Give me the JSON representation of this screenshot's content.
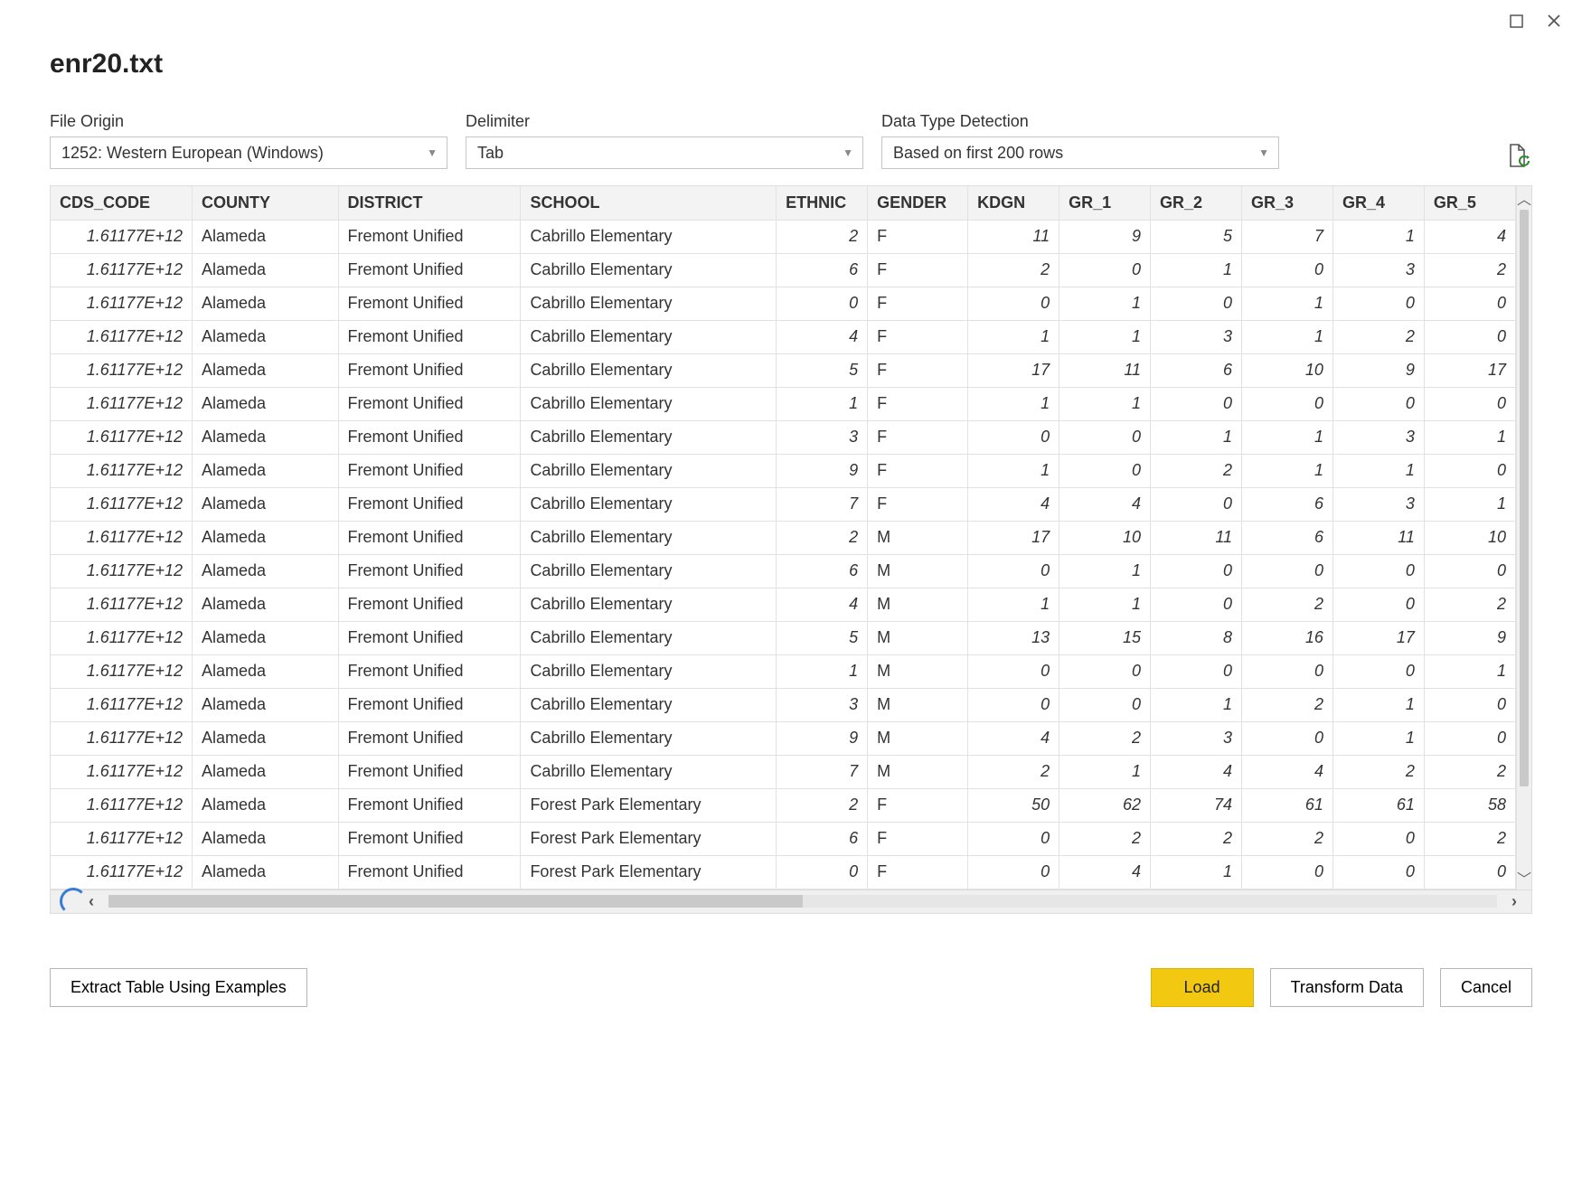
{
  "window": {
    "title": "enr20.txt"
  },
  "options": {
    "fileOrigin": {
      "label": "File Origin",
      "value": "1252: Western European (Windows)"
    },
    "delimiter": {
      "label": "Delimiter",
      "value": "Tab"
    },
    "detection": {
      "label": "Data Type Detection",
      "value": "Based on first 200 rows"
    }
  },
  "table": {
    "columns": [
      "CDS_CODE",
      "COUNTY",
      "DISTRICT",
      "SCHOOL",
      "ETHNIC",
      "GENDER",
      "KDGN",
      "GR_1",
      "GR_2",
      "GR_3",
      "GR_4",
      "GR_5"
    ],
    "colTypes": [
      "num",
      "txt",
      "txt",
      "txt",
      "num",
      "txt",
      "num",
      "num",
      "num",
      "num",
      "num",
      "num"
    ],
    "colClasses": [
      "c-cds",
      "c-county",
      "c-dist",
      "c-school",
      "c-ethnic",
      "c-gender",
      "c-kdgn",
      "c-gr1",
      "c-gr2",
      "c-gr3",
      "c-gr4",
      "c-gr5"
    ],
    "rows": [
      [
        "1.61177E+12",
        "Alameda",
        "Fremont Unified",
        "Cabrillo Elementary",
        "2",
        "F",
        "11",
        "9",
        "5",
        "7",
        "1",
        "4"
      ],
      [
        "1.61177E+12",
        "Alameda",
        "Fremont Unified",
        "Cabrillo Elementary",
        "6",
        "F",
        "2",
        "0",
        "1",
        "0",
        "3",
        "2"
      ],
      [
        "1.61177E+12",
        "Alameda",
        "Fremont Unified",
        "Cabrillo Elementary",
        "0",
        "F",
        "0",
        "1",
        "0",
        "1",
        "0",
        "0"
      ],
      [
        "1.61177E+12",
        "Alameda",
        "Fremont Unified",
        "Cabrillo Elementary",
        "4",
        "F",
        "1",
        "1",
        "3",
        "1",
        "2",
        "0"
      ],
      [
        "1.61177E+12",
        "Alameda",
        "Fremont Unified",
        "Cabrillo Elementary",
        "5",
        "F",
        "17",
        "11",
        "6",
        "10",
        "9",
        "17"
      ],
      [
        "1.61177E+12",
        "Alameda",
        "Fremont Unified",
        "Cabrillo Elementary",
        "1",
        "F",
        "1",
        "1",
        "0",
        "0",
        "0",
        "0"
      ],
      [
        "1.61177E+12",
        "Alameda",
        "Fremont Unified",
        "Cabrillo Elementary",
        "3",
        "F",
        "0",
        "0",
        "1",
        "1",
        "3",
        "1"
      ],
      [
        "1.61177E+12",
        "Alameda",
        "Fremont Unified",
        "Cabrillo Elementary",
        "9",
        "F",
        "1",
        "0",
        "2",
        "1",
        "1",
        "0"
      ],
      [
        "1.61177E+12",
        "Alameda",
        "Fremont Unified",
        "Cabrillo Elementary",
        "7",
        "F",
        "4",
        "4",
        "0",
        "6",
        "3",
        "1"
      ],
      [
        "1.61177E+12",
        "Alameda",
        "Fremont Unified",
        "Cabrillo Elementary",
        "2",
        "M",
        "17",
        "10",
        "11",
        "6",
        "11",
        "10"
      ],
      [
        "1.61177E+12",
        "Alameda",
        "Fremont Unified",
        "Cabrillo Elementary",
        "6",
        "M",
        "0",
        "1",
        "0",
        "0",
        "0",
        "0"
      ],
      [
        "1.61177E+12",
        "Alameda",
        "Fremont Unified",
        "Cabrillo Elementary",
        "4",
        "M",
        "1",
        "1",
        "0",
        "2",
        "0",
        "2"
      ],
      [
        "1.61177E+12",
        "Alameda",
        "Fremont Unified",
        "Cabrillo Elementary",
        "5",
        "M",
        "13",
        "15",
        "8",
        "16",
        "17",
        "9"
      ],
      [
        "1.61177E+12",
        "Alameda",
        "Fremont Unified",
        "Cabrillo Elementary",
        "1",
        "M",
        "0",
        "0",
        "0",
        "0",
        "0",
        "1"
      ],
      [
        "1.61177E+12",
        "Alameda",
        "Fremont Unified",
        "Cabrillo Elementary",
        "3",
        "M",
        "0",
        "0",
        "1",
        "2",
        "1",
        "0"
      ],
      [
        "1.61177E+12",
        "Alameda",
        "Fremont Unified",
        "Cabrillo Elementary",
        "9",
        "M",
        "4",
        "2",
        "3",
        "0",
        "1",
        "0"
      ],
      [
        "1.61177E+12",
        "Alameda",
        "Fremont Unified",
        "Cabrillo Elementary",
        "7",
        "M",
        "2",
        "1",
        "4",
        "4",
        "2",
        "2"
      ],
      [
        "1.61177E+12",
        "Alameda",
        "Fremont Unified",
        "Forest Park Elementary",
        "2",
        "F",
        "50",
        "62",
        "74",
        "61",
        "61",
        "58"
      ],
      [
        "1.61177E+12",
        "Alameda",
        "Fremont Unified",
        "Forest Park Elementary",
        "6",
        "F",
        "0",
        "2",
        "2",
        "2",
        "0",
        "2"
      ],
      [
        "1.61177E+12",
        "Alameda",
        "Fremont Unified",
        "Forest Park Elementary",
        "0",
        "F",
        "0",
        "4",
        "1",
        "0",
        "0",
        "0"
      ]
    ]
  },
  "footer": {
    "extract": "Extract Table Using Examples",
    "load": "Load",
    "transform": "Transform Data",
    "cancel": "Cancel"
  },
  "colors": {
    "accent": "#f2c811",
    "headerBg": "#f3f3f3",
    "border": "#e2e2e2"
  }
}
